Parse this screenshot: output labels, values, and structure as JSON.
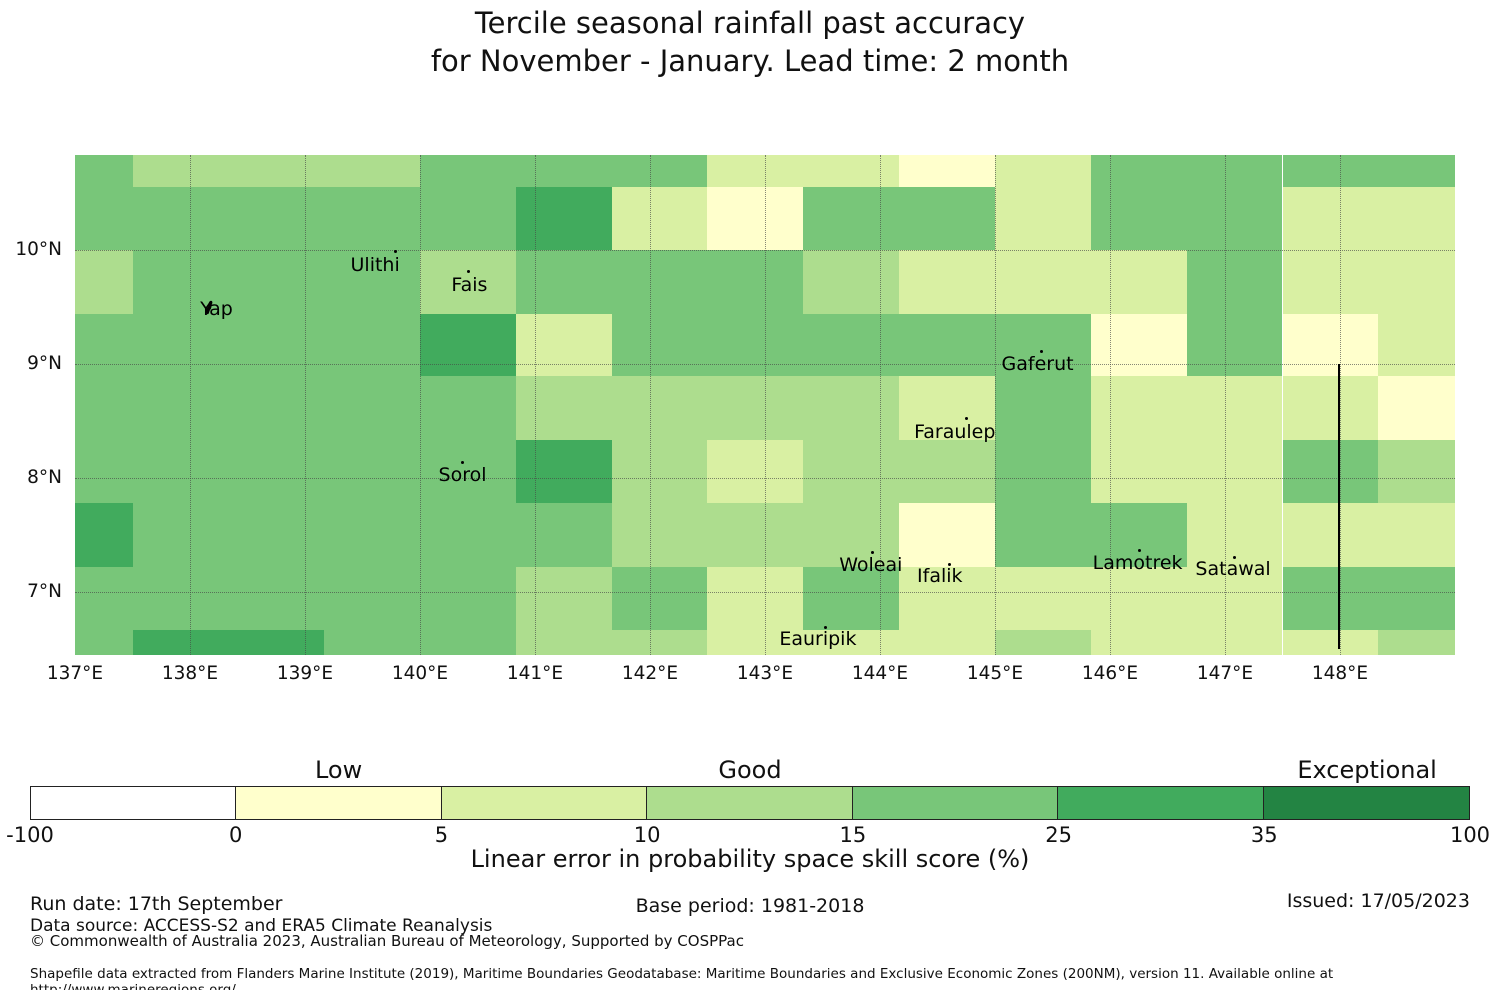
{
  "title": {
    "line1": "Tercile seasonal rainfall past accuracy",
    "line2": "for November - January. Lead time: 2 month"
  },
  "chart_data": {
    "type": "heatmap",
    "description": "Map of tercile seasonal rainfall forecast skill (linear error in probability space, %) on a model grid over the Yap state region, Federated States of Micronesia",
    "lon_range": [
      137,
      149
    ],
    "lat_range": [
      6.45,
      10.83
    ],
    "x_ticks": [
      {
        "lon": 137,
        "label": "137°E"
      },
      {
        "lon": 138,
        "label": "138°E"
      },
      {
        "lon": 139,
        "label": "139°E"
      },
      {
        "lon": 140,
        "label": "140°E"
      },
      {
        "lon": 141,
        "label": "141°E"
      },
      {
        "lon": 142,
        "label": "142°E"
      },
      {
        "lon": 143,
        "label": "143°E"
      },
      {
        "lon": 144,
        "label": "144°E"
      },
      {
        "lon": 145,
        "label": "145°E"
      },
      {
        "lon": 146,
        "label": "146°E"
      },
      {
        "lon": 147,
        "label": "147°E"
      },
      {
        "lon": 148,
        "label": "148°E"
      }
    ],
    "y_ticks": [
      {
        "lat": 10,
        "label": "10°N"
      },
      {
        "lat": 9,
        "label": "9°N"
      },
      {
        "lat": 8,
        "label": "8°N"
      },
      {
        "lat": 7,
        "label": "7°N"
      }
    ],
    "gridline_lons": [
      138,
      139,
      140,
      141,
      142,
      143,
      144,
      145,
      146,
      147,
      148
    ],
    "gridline_lats": [
      7,
      8,
      9,
      10
    ],
    "grid_lon_bounds": [
      137.0,
      137.5,
      138.333,
      139.167,
      140.0,
      140.833,
      141.667,
      142.5,
      143.333,
      144.167,
      145.0,
      145.833,
      146.667,
      147.5,
      148.333,
      149.0
    ],
    "grid_lat_bounds": [
      10.83,
      10.55,
      10.0,
      9.44,
      8.89,
      8.33,
      7.78,
      7.22,
      6.67,
      6.45
    ],
    "value_bins": {
      "W": "-100 to 0",
      "A": "0 to 5",
      "B": "5 to 10",
      "C": "10 to 15",
      "D": "15 to 25",
      "E": "25 to 35",
      "F": "35 to 100"
    },
    "value_colors": {
      "W": "#ffffff",
      "A": "#ffffcc",
      "B": "#d9f0a3",
      "C": "#addd8e",
      "D": "#78c679",
      "E": "#41ab5d",
      "F": "#238443"
    },
    "grid_values": [
      [
        "D",
        "C",
        "C",
        "C",
        "D",
        "D",
        "D",
        "B",
        "B",
        "A",
        "B",
        "D",
        "D",
        "D",
        "D"
      ],
      [
        "D",
        "D",
        "D",
        "D",
        "D",
        "E",
        "B",
        "A",
        "D",
        "D",
        "B",
        "D",
        "D",
        "B",
        "B"
      ],
      [
        "C",
        "D",
        "D",
        "D",
        "C",
        "D",
        "D",
        "D",
        "C",
        "B",
        "B",
        "B",
        "D",
        "B",
        "B"
      ],
      [
        "D",
        "D",
        "D",
        "D",
        "E",
        "B",
        "D",
        "D",
        "D",
        "D",
        "D",
        "A",
        "D",
        "A",
        "B"
      ],
      [
        "D",
        "D",
        "D",
        "D",
        "D",
        "C",
        "C",
        "C",
        "C",
        "B",
        "D",
        "B",
        "B",
        "B",
        "A"
      ],
      [
        "D",
        "D",
        "D",
        "D",
        "D",
        "E",
        "C",
        "B",
        "C",
        "C",
        "D",
        "B",
        "B",
        "D",
        "C"
      ],
      [
        "E",
        "D",
        "D",
        "D",
        "D",
        "D",
        "C",
        "C",
        "C",
        "A",
        "D",
        "D",
        "B",
        "B",
        "B"
      ],
      [
        "D",
        "D",
        "D",
        "D",
        "D",
        "C",
        "D",
        "B",
        "D",
        "B",
        "B",
        "B",
        "B",
        "D",
        "D"
      ],
      [
        "D",
        "E",
        "E",
        "D",
        "D",
        "C",
        "C",
        "B",
        "B",
        "B",
        "C",
        "B",
        "B",
        "B",
        "C"
      ]
    ],
    "islands": [
      {
        "name": "Yap",
        "lon": 138.23,
        "lat": 9.48,
        "dot_dx": -12,
        "dot_dy": -10,
        "marker": "shape"
      },
      {
        "name": "Ulithi",
        "lon": 139.61,
        "lat": 9.87,
        "dot_dx": 19,
        "dot_dy": -15,
        "marker": "dot"
      },
      {
        "name": "Fais",
        "lon": 140.43,
        "lat": 9.69,
        "dot_dx": -2,
        "dot_dy": -15,
        "marker": "dot"
      },
      {
        "name": "Sorol",
        "lon": 140.37,
        "lat": 8.03,
        "dot_dx": -2,
        "dot_dy": -14,
        "marker": "dot"
      },
      {
        "name": "Gaferut",
        "lon": 145.37,
        "lat": 9.0,
        "dot_dx": 2,
        "dot_dy": -14,
        "marker": "dot"
      },
      {
        "name": "Faraulep",
        "lon": 144.65,
        "lat": 8.4,
        "dot_dx": 10,
        "dot_dy": -15,
        "marker": "dot"
      },
      {
        "name": "Woleai",
        "lon": 143.92,
        "lat": 7.24,
        "dot_dx": 0,
        "dot_dy": -14,
        "marker": "dot"
      },
      {
        "name": "Ifalik",
        "lon": 144.52,
        "lat": 7.14,
        "dot_dx": 8,
        "dot_dy": -13,
        "marker": "dot"
      },
      {
        "name": "Lamotrek",
        "lon": 146.24,
        "lat": 7.26,
        "dot_dx": 0,
        "dot_dy": -14,
        "marker": "dot"
      },
      {
        "name": "Satawal",
        "lon": 147.07,
        "lat": 7.2,
        "dot_dx": 0,
        "dot_dy": -13,
        "marker": "dot"
      },
      {
        "name": "Eauripik",
        "lon": 143.46,
        "lat": 6.59,
        "dot_dx": 6,
        "dot_dy": -13,
        "marker": "dot"
      }
    ],
    "eez_boundary_line": {
      "lon": 147.98,
      "lat_from": 9.0,
      "lat_to": 6.5
    }
  },
  "colorbar": {
    "tick_labels": [
      "-100",
      "0",
      "5",
      "10",
      "15",
      "25",
      "35",
      "100"
    ],
    "segments": [
      {
        "range": "-100 to 0",
        "color": "#ffffff"
      },
      {
        "range": "0 to 5",
        "color": "#ffffcc"
      },
      {
        "range": "5 to 10",
        "color": "#d9f0a3"
      },
      {
        "range": "10 to 15",
        "color": "#addd8e"
      },
      {
        "range": "15 to 25",
        "color": "#78c679"
      },
      {
        "range": "25 to 35",
        "color": "#41ab5d"
      },
      {
        "range": "35 to 100",
        "color": "#238443"
      }
    ],
    "zone_labels": [
      {
        "text": "Low",
        "segment_index": 1
      },
      {
        "text": "Good",
        "segment_index": 3
      },
      {
        "text": "Exceptional",
        "segment_index": 6
      }
    ],
    "caption": "Linear error in probability space skill score (%)"
  },
  "footer": {
    "run_date": "Run date: 17th September",
    "base_period": "Base period: 1981-2018",
    "issued": "Issued: 17/05/2023",
    "data_source": "Data source: ACCESS-S2 and ERA5 Climate Reanalysis",
    "copyright": "© Commonwealth of Australia 2023, Australian Bureau of Meteorology, Supported by COSPPac",
    "shapefile_note": "Shapefile data extracted from Flanders Marine Institute (2019), Maritime Boundaries Geodatabase: Maritime Boundaries and Exclusive Economic Zones (200NM), version 11. Available online at http://www.marineregions.org/."
  }
}
